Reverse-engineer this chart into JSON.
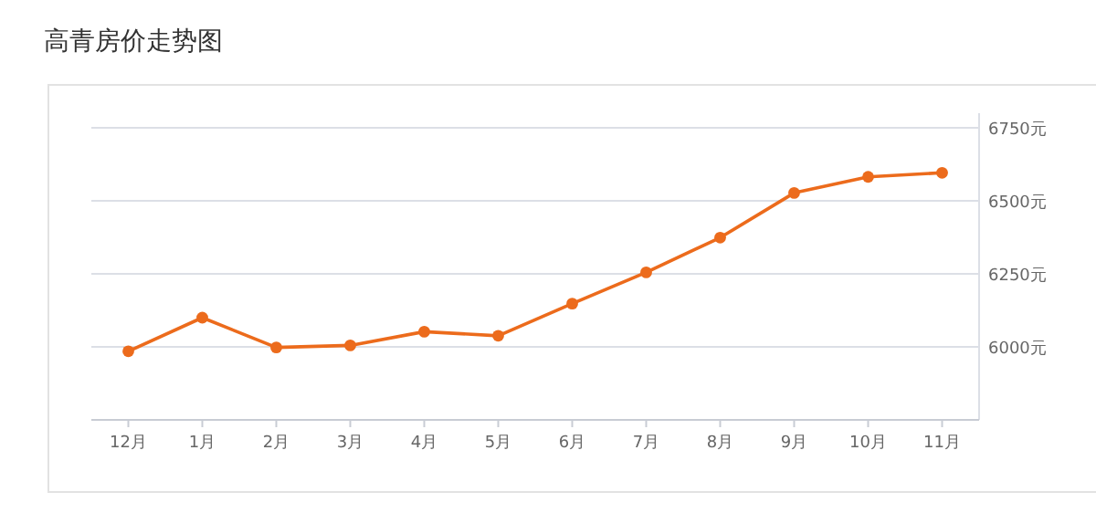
{
  "chart_data": {
    "type": "line",
    "title": "高青房价走势图",
    "categories": [
      "12月",
      "1月",
      "2月",
      "3月",
      "4月",
      "5月",
      "6月",
      "7月",
      "8月",
      "9月",
      "10月",
      "11月"
    ],
    "series": [
      {
        "color": "#ec6b1c",
        "values": [
          5985,
          6100,
          5998,
          6005,
          6052,
          6038,
          6148,
          6255,
          6374,
          6527,
          6582,
          6596
        ]
      }
    ],
    "ylim": [
      5750,
      6750
    ],
    "yticks": [
      {
        "value": 6000,
        "label": "6000元"
      },
      {
        "value": 6250,
        "label": "6250元"
      },
      {
        "value": 6500,
        "label": "6500元"
      },
      {
        "value": 6750,
        "label": "6750元"
      }
    ],
    "grid": "y",
    "marker": "circle",
    "line_style": "solid"
  }
}
